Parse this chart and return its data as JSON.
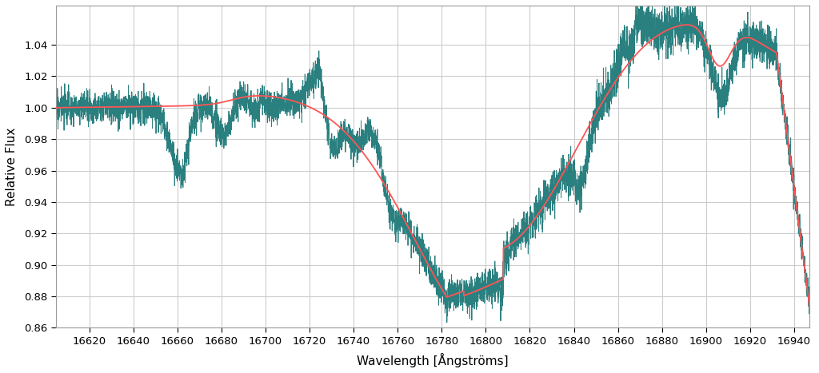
{
  "xlim": [
    16605,
    16947
  ],
  "ylim": [
    0.86,
    1.065
  ],
  "xlabel": "Wavelength [Ångströms]",
  "ylabel": "Relative Flux",
  "xticks": [
    16620,
    16640,
    16660,
    16680,
    16700,
    16720,
    16740,
    16760,
    16780,
    16800,
    16820,
    16840,
    16860,
    16880,
    16900,
    16920,
    16940
  ],
  "yticks": [
    0.86,
    0.88,
    0.9,
    0.92,
    0.94,
    0.96,
    0.98,
    1.0,
    1.02,
    1.04
  ],
  "observed_color": "#2a7f7f",
  "model_color": "#ff5555",
  "background_color": "#ffffff",
  "grid_color": "#cccccc",
  "linewidth_obs": 0.7,
  "linewidth_model": 1.3,
  "seed": 17
}
